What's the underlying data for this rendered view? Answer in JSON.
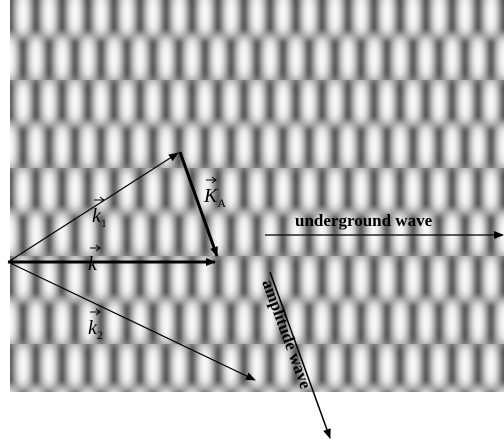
{
  "labels": {
    "k1": {
      "symbol": "k",
      "subscript": "1"
    },
    "KA": {
      "symbol": "K",
      "subscript": "A"
    },
    "k": {
      "symbol": "k"
    },
    "k2": {
      "symbol": "k",
      "subscript": "2"
    },
    "underground": "underground wave",
    "amplitude": "amplitude wave"
  }
}
